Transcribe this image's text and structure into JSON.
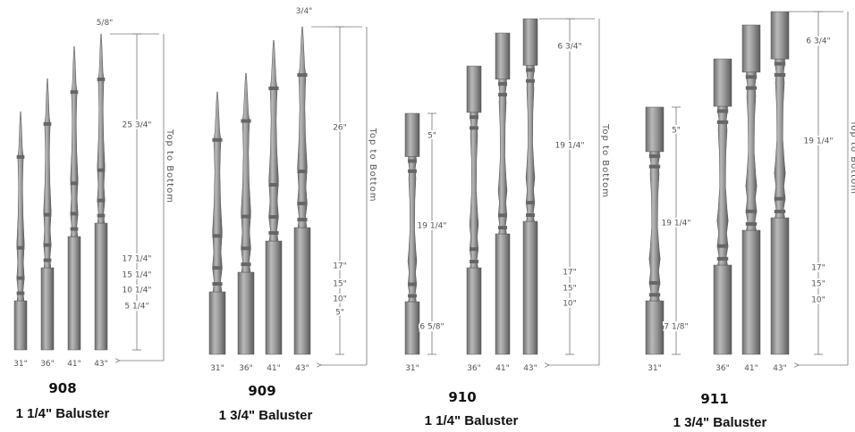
{
  "groups": [
    {
      "model": "908",
      "name": "1 1/4\" Baluster",
      "heights": [
        "31\"",
        "36\"",
        "41\"",
        "43\""
      ],
      "top_label": "5/8\"",
      "outer_dimensions": [
        "25 3/4\"",
        "17 1/4\"",
        "15 1/4\"",
        "10 1/4\"",
        "5 1/4\""
      ],
      "side_label": "Top to Bottom"
    },
    {
      "model": "909",
      "name": "1 3/4\" Baluster",
      "heights": [
        "31\"",
        "36\"",
        "41\"",
        "43\""
      ],
      "top_label": "3/4\"",
      "outer_dimensions": [
        "26\"",
        "17\"",
        "15\"",
        "10\"",
        "5\""
      ],
      "side_label": "Top to Bottom"
    },
    {
      "model": "910",
      "name": "1 1/4\" Baluster",
      "heights": [
        "31\"",
        "36\"",
        "41\"",
        "43\""
      ],
      "outer_dimensions": [
        "6 3/4\"",
        "19 1/4\"",
        "17\"",
        "15\"",
        "10\""
      ],
      "inner_dimensions": [
        "5\"",
        "19 1/4\"",
        "6 5/8\""
      ],
      "side_label": "Top to Bottom"
    },
    {
      "model": "911",
      "name": "1 3/4\" Baluster",
      "heights": [
        "31\"",
        "36\"",
        "41\"",
        "43\""
      ],
      "outer_dimensions": [
        "6 3/4\"",
        "19 1/4\"",
        "17\"",
        "15\"",
        "10\""
      ],
      "inner_dimensions": [
        "5\"",
        "19 1/4\"",
        "7 1/8\""
      ],
      "side_label": "Top to Bottom"
    }
  ]
}
